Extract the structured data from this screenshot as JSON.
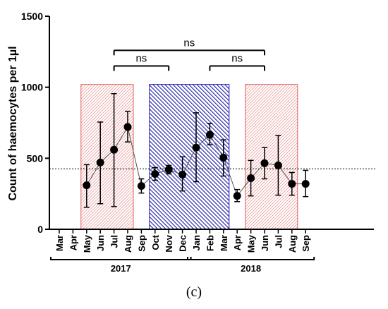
{
  "chart_data": {
    "type": "scatter",
    "ylabel": "Count of haemocytes per 1µl",
    "ylim": [
      0,
      1500
    ],
    "yticks": [
      0,
      500,
      1000,
      1500
    ],
    "categories": [
      "Mar",
      "Apr",
      "May",
      "Jun",
      "Jul",
      "Aug",
      "Sep",
      "Oct",
      "Nov",
      "Dec",
      "Jan",
      "Feb",
      "Mar",
      "Apr",
      "May",
      "Jun",
      "Jul",
      "Aug",
      "Sep"
    ],
    "year_groups": [
      {
        "label": "2017",
        "start": 0,
        "end": 9
      },
      {
        "label": "2018",
        "start": 10,
        "end": 18
      }
    ],
    "series": [
      {
        "values": [
          null,
          null,
          310,
          470,
          560,
          720,
          305,
          390,
          420,
          385,
          575,
          665,
          505,
          235,
          360,
          465,
          450,
          320,
          320
        ],
        "error_low": [
          null,
          null,
          155,
          180,
          160,
          615,
          255,
          345,
          390,
          270,
          335,
          595,
          375,
          195,
          235,
          355,
          240,
          240,
          230
        ],
        "error_high": [
          null,
          null,
          455,
          755,
          955,
          830,
          355,
          435,
          450,
          510,
          820,
          745,
          630,
          280,
          485,
          575,
          660,
          400,
          415
        ]
      }
    ],
    "reference_line": {
      "y": 425,
      "style": "dotted"
    },
    "shaded_regions": [
      {
        "start": 2,
        "end": 5,
        "ymax": 1020,
        "color": "#d9534f",
        "pattern": "red-hatch"
      },
      {
        "start": 7,
        "end": 12,
        "ymax": 1020,
        "color": "#1c1caa",
        "pattern": "blue-hatch"
      },
      {
        "start": 14,
        "end": 17,
        "ymax": 1020,
        "color": "#d9534f",
        "pattern": "red-hatch"
      }
    ],
    "significance": [
      {
        "from": 4,
        "to": 15,
        "y": 1260,
        "label": "ns"
      },
      {
        "from": 4,
        "to": 8,
        "y": 1150,
        "label": "ns"
      },
      {
        "from": 11,
        "to": 15,
        "y": 1150,
        "label": "ns"
      }
    ]
  },
  "caption": "(c)"
}
